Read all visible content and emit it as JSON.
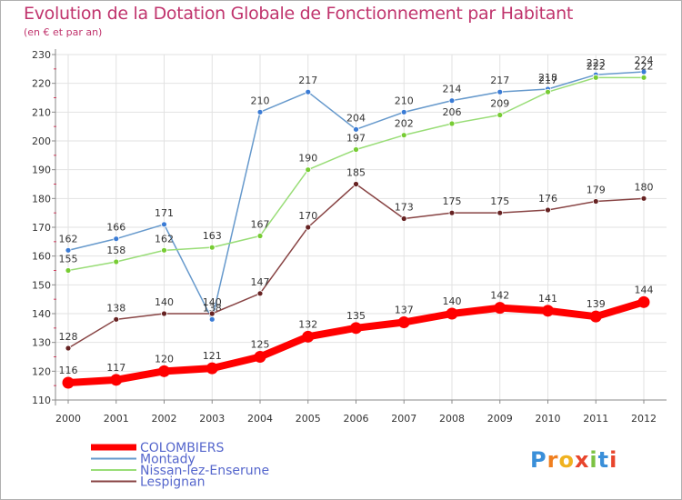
{
  "colors": {
    "title": "#c0346d",
    "axis": "#8a8a8a",
    "grid": "#e2e2e2"
  },
  "chart_data": {
    "type": "line",
    "title": "Evolution de la Dotation Globale de Fonctionnement par Habitant",
    "subtitle": "(en € et par an)",
    "xlabel": "",
    "ylabel": "",
    "ylim": [
      110,
      230
    ],
    "yticks": [
      110,
      120,
      130,
      140,
      150,
      160,
      170,
      180,
      190,
      200,
      210,
      220,
      230
    ],
    "categories": [
      "2000",
      "2001",
      "2002",
      "2003",
      "2004",
      "2005",
      "2006",
      "2007",
      "2008",
      "2009",
      "2010",
      "2011",
      "2012"
    ],
    "series": [
      {
        "name": "COLOMBIERS",
        "color": "#ff0000",
        "emphasis": true,
        "values": [
          116,
          117,
          120,
          121,
          125,
          132,
          135,
          137,
          140,
          142,
          141,
          139,
          144
        ]
      },
      {
        "name": "Montady",
        "color": "#6699cc",
        "point_color": "#3a7bd5",
        "emphasis": false,
        "values": [
          162,
          166,
          171,
          138,
          210,
          217,
          204,
          210,
          214,
          217,
          218,
          223,
          224
        ]
      },
      {
        "name": "Nissan-lez-Enserune",
        "color": "#99dd77",
        "point_color": "#77cc33",
        "emphasis": false,
        "values": [
          155,
          158,
          162,
          163,
          167,
          190,
          197,
          202,
          206,
          209,
          217,
          222,
          222
        ]
      },
      {
        "name": "Lespignan",
        "color": "#884444",
        "point_color": "#662222",
        "emphasis": false,
        "values": [
          128,
          138,
          140,
          140,
          147,
          170,
          185,
          173,
          175,
          175,
          176,
          179,
          180
        ]
      }
    ],
    "legend": "bottom-left"
  },
  "logo": {
    "letters": [
      "P",
      "r",
      "o",
      "x",
      "i",
      "t",
      "i"
    ],
    "colors": [
      "#3a8fd9",
      "#f07f1f",
      "#f0b21f",
      "#e8452c",
      "#7cc243",
      "#3a8fd9",
      "#e8452c"
    ]
  }
}
